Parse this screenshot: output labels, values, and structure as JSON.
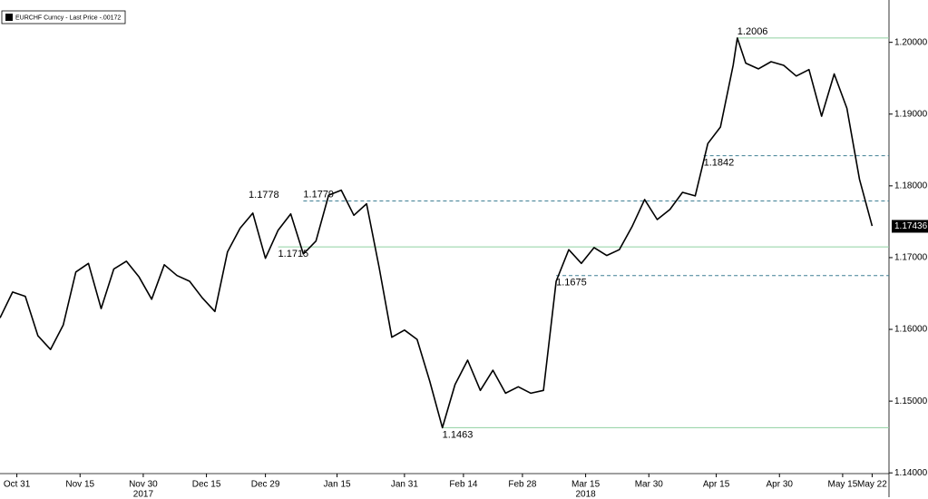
{
  "chart_data": {
    "type": "line",
    "series": [
      {
        "name": "EURCHF Curncy - Last Price -.00172",
        "color": "#000000",
        "x": [
          "2017-10-27",
          "2017-10-30",
          "2017-11-02",
          "2017-11-05",
          "2017-11-08",
          "2017-11-11",
          "2017-11-14",
          "2017-11-17",
          "2017-11-20",
          "2017-11-23",
          "2017-11-26",
          "2017-11-29",
          "2017-12-02",
          "2017-12-05",
          "2017-12-08",
          "2017-12-11",
          "2017-12-14",
          "2017-12-17",
          "2017-12-20",
          "2017-12-23",
          "2017-12-26",
          "2017-12-29",
          "2018-01-01",
          "2018-01-04",
          "2018-01-07",
          "2018-01-10",
          "2018-01-13",
          "2018-01-16",
          "2018-01-19",
          "2018-01-22",
          "2018-01-25",
          "2018-01-28",
          "2018-01-31",
          "2018-02-03",
          "2018-02-06",
          "2018-02-09",
          "2018-02-12",
          "2018-02-15",
          "2018-02-18",
          "2018-02-21",
          "2018-02-24",
          "2018-02-27",
          "2018-03-02",
          "2018-03-05",
          "2018-03-08",
          "2018-03-11",
          "2018-03-14",
          "2018-03-17",
          "2018-03-20",
          "2018-03-23",
          "2018-03-26",
          "2018-03-29",
          "2018-04-01",
          "2018-04-04",
          "2018-04-07",
          "2018-04-10",
          "2018-04-13",
          "2018-04-16",
          "2018-04-19",
          "2018-04-20",
          "2018-04-22",
          "2018-04-25",
          "2018-04-28",
          "2018-05-01",
          "2018-05-04",
          "2018-05-07",
          "2018-05-10",
          "2018-05-13",
          "2018-05-16",
          "2018-05-19",
          "2018-05-22"
        ],
        "values": [
          1.1616,
          1.1652,
          1.1646,
          1.1591,
          1.1572,
          1.1606,
          1.168,
          1.1692,
          1.1629,
          1.1684,
          1.1695,
          1.1673,
          1.1642,
          1.169,
          1.1675,
          1.1667,
          1.1644,
          1.1625,
          1.1708,
          1.1741,
          1.1762,
          1.1699,
          1.1738,
          1.1761,
          1.1705,
          1.1723,
          1.1787,
          1.1794,
          1.1759,
          1.1775,
          1.1686,
          1.1589,
          1.1599,
          1.1586,
          1.1528,
          1.1463,
          1.1523,
          1.1557,
          1.1515,
          1.1543,
          1.1511,
          1.152,
          1.1511,
          1.1515,
          1.1667,
          1.1711,
          1.1692,
          1.1714,
          1.1703,
          1.1711,
          1.1743,
          1.1781,
          1.1753,
          1.1767,
          1.1791,
          1.1786,
          1.1859,
          1.1882,
          1.1968,
          1.2006,
          1.1971,
          1.1963,
          1.1973,
          1.1968,
          1.1953,
          1.1962,
          1.1897,
          1.1956,
          1.1908,
          1.1809,
          1.1744
        ]
      }
    ],
    "last_price": 1.17436,
    "annotations": [
      {
        "value": 1.2006,
        "x": "2018-04-20",
        "line": "solid"
      },
      {
        "value": 1.1842,
        "x": "2018-04-12",
        "line": "dashed"
      },
      {
        "value": 1.1779,
        "x": "2018-01-07",
        "line": "dashed"
      },
      {
        "value": 1.1778,
        "x": "2017-12-25"
      },
      {
        "value": 1.1715,
        "x": "2018-01-01",
        "line": "solid"
      },
      {
        "value": 1.1675,
        "x": "2018-03-08",
        "line": "dashed"
      },
      {
        "value": 1.1463,
        "x": "2018-02-09",
        "line": "solid"
      }
    ],
    "xlim": [
      "2017-10-27",
      "2018-05-26"
    ],
    "xticks": [
      {
        "value": "2017-10-31",
        "label": "Oct 31"
      },
      {
        "value": "2017-11-15",
        "label": "Nov 15"
      },
      {
        "value": "2017-11-30",
        "label": "Nov 30"
      },
      {
        "value": "2017-12-15",
        "label": "Dec 15"
      },
      {
        "value": "2017-12-29",
        "label": "Dec 29"
      },
      {
        "value": "2018-01-15",
        "label": "Jan 15"
      },
      {
        "value": "2018-01-31",
        "label": "Jan 31"
      },
      {
        "value": "2018-02-14",
        "label": "Feb 14"
      },
      {
        "value": "2018-02-28",
        "label": "Feb 28"
      },
      {
        "value": "2018-03-15",
        "label": "Mar 15"
      },
      {
        "value": "2018-03-30",
        "label": "Mar 30"
      },
      {
        "value": "2018-04-15",
        "label": "Apr 15"
      },
      {
        "value": "2018-04-30",
        "label": "Apr 30"
      },
      {
        "value": "2018-05-15",
        "label": "May 15"
      },
      {
        "value": "2018-05-22",
        "label": "May 22"
      }
    ],
    "year_labels": [
      {
        "value": "2017-11-30",
        "label": "2017"
      },
      {
        "value": "2018-03-15",
        "label": "2018"
      }
    ],
    "ylim": [
      1.1399,
      1.2059
    ],
    "yticks": [
      {
        "value": 1.14,
        "label": "1.14000"
      },
      {
        "value": 1.15,
        "label": "1.15000"
      },
      {
        "value": 1.16,
        "label": "1.16000"
      },
      {
        "value": 1.17,
        "label": "1.17000"
      },
      {
        "value": 1.18,
        "label": "1.18000"
      },
      {
        "value": 1.19,
        "label": "1.19000"
      },
      {
        "value": 1.2,
        "label": "1.20000"
      }
    ],
    "grid": false
  }
}
